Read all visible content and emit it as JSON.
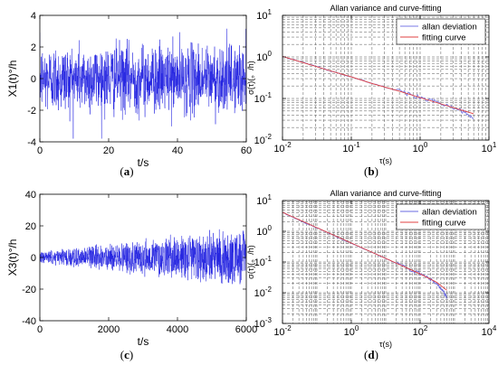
{
  "panel_labels": {
    "a": [
      "(",
      "a",
      ")"
    ],
    "b": [
      "(",
      "b",
      ")"
    ],
    "c": [
      "(",
      "c",
      ")"
    ],
    "d": [
      "(",
      "d",
      ")"
    ]
  },
  "chart_data": [
    {
      "id": "a",
      "type": "line",
      "title": "",
      "xlabel": "t/s",
      "ylabel": "X1(t)°/h",
      "xlim": [
        0,
        60
      ],
      "ylim": [
        -4,
        4
      ],
      "xticks": [
        0,
        20,
        40,
        60
      ],
      "yticks": [
        -4,
        -2,
        0,
        2,
        4
      ],
      "grid": false,
      "series": [
        {
          "color": "#1f1fe0",
          "description_points": 1200,
          "mean": 0,
          "std": 1.05,
          "peak_max": 3.6,
          "peak_min": -3.8
        }
      ]
    },
    {
      "id": "b",
      "type": "line",
      "title": "Allan variance and curve-fitting",
      "xlabel": "τ(s)",
      "ylabel": "σ(τ)(。/h)",
      "xscale": "log",
      "yscale": "log",
      "xlim": [
        0.01,
        10
      ],
      "ylim": [
        0.01,
        10
      ],
      "xticks": [
        0.01,
        0.1,
        1,
        10
      ],
      "xtick_labels": [
        [
          "10",
          "-2"
        ],
        [
          "10",
          "-1"
        ],
        [
          "10",
          "0"
        ],
        [
          "10",
          "1"
        ]
      ],
      "yticks": [
        0.01,
        0.1,
        1,
        10
      ],
      "ytick_labels": [
        [
          "10",
          "-2"
        ],
        [
          "10",
          "-1"
        ],
        [
          "10",
          "0"
        ],
        [
          "10",
          "1"
        ]
      ],
      "grid": true,
      "legend": "top-right",
      "series": [
        {
          "name": "allan deviation",
          "color": "#7a7ae6",
          "x": [
            0.01,
            0.015,
            0.02,
            0.03,
            0.05,
            0.07,
            0.1,
            0.15,
            0.2,
            0.3,
            0.5,
            0.7,
            1,
            1.5,
            2,
            3,
            4,
            5,
            6
          ],
          "y": [
            1.02,
            0.84,
            0.73,
            0.6,
            0.46,
            0.39,
            0.33,
            0.27,
            0.23,
            0.19,
            0.15,
            0.125,
            0.105,
            0.09,
            0.075,
            0.062,
            0.05,
            0.041,
            0.033
          ]
        },
        {
          "name": "fitting curve",
          "color": "#e04040",
          "x": [
            0.01,
            0.02,
            0.05,
            0.1,
            0.2,
            0.5,
            1,
            2,
            5,
            6
          ],
          "y": [
            1.03,
            0.73,
            0.46,
            0.33,
            0.23,
            0.15,
            0.105,
            0.074,
            0.047,
            0.043
          ]
        }
      ]
    },
    {
      "id": "c",
      "type": "line",
      "title": "",
      "xlabel": "t/s",
      "ylabel": "X3(t)°/h",
      "xlim": [
        0,
        6000
      ],
      "ylim": [
        -40,
        40
      ],
      "xticks": [
        0,
        2000,
        4000,
        6000
      ],
      "yticks": [
        -40,
        -20,
        0,
        20,
        40
      ],
      "grid": false,
      "series": [
        {
          "color": "#1f1fe0",
          "description_points": 1200,
          "envelope_start": 4,
          "envelope_end": 21
        }
      ]
    },
    {
      "id": "d",
      "type": "line",
      "title": "Allan variance and curve-fitting",
      "xlabel": "τ(s)",
      "ylabel": "σ(τ)(。/h)",
      "xscale": "log",
      "yscale": "log",
      "xlim": [
        0.01,
        10000
      ],
      "ylim": [
        0.001,
        10
      ],
      "xticks": [
        0.01,
        1,
        100,
        10000
      ],
      "xtick_labels": [
        [
          "10",
          "-2"
        ],
        [
          "10",
          "0"
        ],
        [
          "10",
          "2"
        ],
        [
          "10",
          "4"
        ]
      ],
      "yticks": [
        0.001,
        0.01,
        0.1,
        1,
        10
      ],
      "ytick_labels": [
        [
          "10",
          "-3"
        ],
        [
          "10",
          "-2"
        ],
        [
          "10",
          "-1"
        ],
        [
          "10",
          "0"
        ],
        [
          "10",
          "1"
        ]
      ],
      "grid": true,
      "legend": "top-right",
      "series": [
        {
          "name": "allan deviation",
          "color": "#6a6ae0",
          "x": [
            0.01,
            0.03,
            0.1,
            0.3,
            1,
            3,
            10,
            30,
            60,
            100,
            150,
            200,
            300,
            400,
            500,
            600
          ],
          "y": [
            4.1,
            2.3,
            1.3,
            0.74,
            0.41,
            0.24,
            0.13,
            0.076,
            0.052,
            0.041,
            0.032,
            0.027,
            0.02,
            0.014,
            0.01,
            0.0065
          ]
        },
        {
          "name": "fitting curve",
          "color": "#e04040",
          "x": [
            0.01,
            0.1,
            1,
            10,
            100,
            300,
            600
          ],
          "y": [
            4.15,
            1.31,
            0.415,
            0.131,
            0.041,
            0.022,
            0.012
          ]
        }
      ]
    }
  ]
}
